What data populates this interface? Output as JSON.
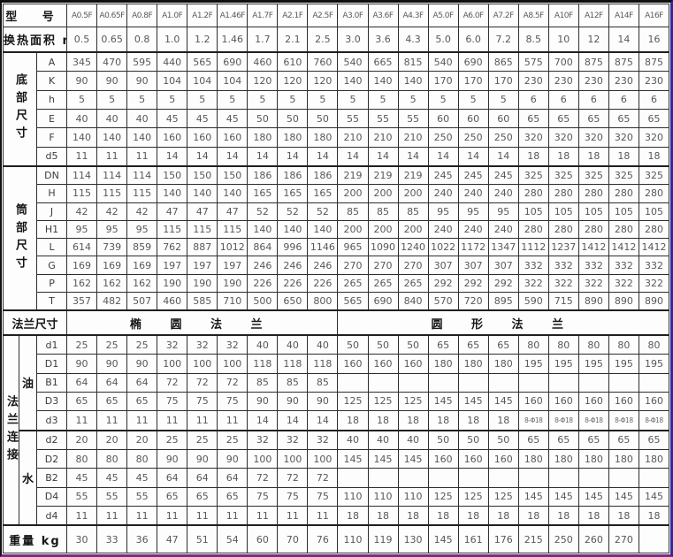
{
  "table": {
    "header": {
      "model_label": "型  号",
      "models": [
        "A0.5F",
        "A0.65F",
        "A0.8F",
        "A1.0F",
        "A1.2F",
        "A1.46F",
        "A1.7F",
        "A2.1F",
        "A2.5F",
        "A3.0F",
        "A3.6F",
        "A4.3F",
        "A5.0F",
        "A6.0F",
        "A7.2F",
        "A8.5F",
        "A10F",
        "A12F",
        "A14F",
        "A16F"
      ]
    },
    "area": {
      "label": "换热面积 m²",
      "values": [
        "0.5",
        "0.65",
        "0.8",
        "1.0",
        "1.2",
        "1.46",
        "1.7",
        "2.1",
        "2.5",
        "3.0",
        "3.6",
        "4.3",
        "5.0",
        "6.0",
        "7.2",
        "8.5",
        "10",
        "12",
        "14",
        "16"
      ]
    },
    "bottom": {
      "label": "底部尺寸",
      "rows": [
        {
          "param": "A",
          "values": [
            "345",
            "470",
            "595",
            "440",
            "565",
            "690",
            "460",
            "610",
            "760",
            "540",
            "665",
            "815",
            "540",
            "690",
            "865",
            "575",
            "700",
            "875",
            "875",
            "875"
          ]
        },
        {
          "param": "K",
          "values": [
            "90",
            "90",
            "90",
            "104",
            "104",
            "104",
            "120",
            "120",
            "120",
            "140",
            "140",
            "140",
            "170",
            "170",
            "170",
            "230",
            "230",
            "230",
            "230",
            "230"
          ]
        },
        {
          "param": "h",
          "values": [
            "5",
            "5",
            "5",
            "5",
            "5",
            "5",
            "5",
            "5",
            "5",
            "5",
            "5",
            "5",
            "5",
            "5",
            "5",
            "6",
            "6",
            "6",
            "6",
            "6"
          ]
        },
        {
          "param": "E",
          "values": [
            "40",
            "40",
            "40",
            "45",
            "45",
            "45",
            "50",
            "50",
            "50",
            "55",
            "55",
            "55",
            "60",
            "60",
            "60",
            "65",
            "65",
            "65",
            "65",
            "65"
          ]
        },
        {
          "param": "F",
          "values": [
            "140",
            "140",
            "140",
            "160",
            "160",
            "160",
            "180",
            "180",
            "180",
            "210",
            "210",
            "210",
            "250",
            "250",
            "250",
            "320",
            "320",
            "320",
            "320",
            "320"
          ]
        },
        {
          "param": "d5",
          "values": [
            "11",
            "11",
            "11",
            "14",
            "14",
            "14",
            "14",
            "14",
            "14",
            "14",
            "14",
            "14",
            "14",
            "14",
            "14",
            "18",
            "18",
            "18",
            "18",
            "18"
          ]
        }
      ]
    },
    "cylinder": {
      "label": "筒部尺寸",
      "rows": [
        {
          "param": "DN",
          "values": [
            "114",
            "114",
            "114",
            "150",
            "150",
            "150",
            "186",
            "186",
            "186",
            "219",
            "219",
            "219",
            "245",
            "245",
            "245",
            "325",
            "325",
            "325",
            "325",
            "325"
          ]
        },
        {
          "param": "H",
          "values": [
            "115",
            "115",
            "115",
            "140",
            "140",
            "140",
            "165",
            "165",
            "165",
            "200",
            "200",
            "200",
            "240",
            "240",
            "240",
            "280",
            "280",
            "280",
            "280",
            "280"
          ]
        },
        {
          "param": "J",
          "values": [
            "42",
            "42",
            "42",
            "47",
            "47",
            "47",
            "52",
            "52",
            "52",
            "85",
            "85",
            "85",
            "95",
            "95",
            "95",
            "105",
            "105",
            "105",
            "105",
            "105"
          ]
        },
        {
          "param": "H1",
          "values": [
            "95",
            "95",
            "95",
            "115",
            "115",
            "115",
            "140",
            "140",
            "140",
            "200",
            "200",
            "200",
            "240",
            "240",
            "240",
            "280",
            "280",
            "280",
            "280",
            "280"
          ]
        },
        {
          "param": "L",
          "values": [
            "614",
            "739",
            "859",
            "762",
            "887",
            "1012",
            "864",
            "996",
            "1146",
            "965",
            "1090",
            "1240",
            "1022",
            "1172",
            "1347",
            "1112",
            "1237",
            "1412",
            "1412",
            "1412"
          ]
        },
        {
          "param": "G",
          "values": [
            "169",
            "169",
            "169",
            "197",
            "197",
            "197",
            "246",
            "246",
            "246",
            "270",
            "270",
            "270",
            "307",
            "307",
            "307",
            "332",
            "332",
            "332",
            "332",
            "332"
          ]
        },
        {
          "param": "P",
          "values": [
            "162",
            "162",
            "162",
            "190",
            "190",
            "190",
            "226",
            "226",
            "226",
            "265",
            "265",
            "265",
            "292",
            "292",
            "292",
            "322",
            "322",
            "322",
            "322",
            "322"
          ]
        },
        {
          "param": "T",
          "values": [
            "357",
            "482",
            "507",
            "460",
            "585",
            "710",
            "500",
            "650",
            "800",
            "565",
            "690",
            "840",
            "570",
            "720",
            "895",
            "590",
            "715",
            "890",
            "890",
            "890"
          ]
        }
      ]
    },
    "flange": {
      "label": "法兰尺寸",
      "oval": "椭 圆 法 兰",
      "round": "圆 形 法 兰"
    },
    "connection": {
      "label": "法兰连接",
      "oil": {
        "label": "油",
        "rows": [
          {
            "param": "d1",
            "values": [
              "25",
              "25",
              "25",
              "32",
              "32",
              "32",
              "40",
              "40",
              "40",
              "50",
              "50",
              "50",
              "65",
              "65",
              "65",
              "80",
              "80",
              "80",
              "80",
              "80"
            ]
          },
          {
            "param": "D1",
            "values": [
              "90",
              "90",
              "90",
              "100",
              "100",
              "100",
              "118",
              "118",
              "118",
              "160",
              "160",
              "160",
              "180",
              "180",
              "180",
              "195",
              "195",
              "195",
              "195",
              "195"
            ]
          },
          {
            "param": "B1",
            "values": [
              "64",
              "64",
              "64",
              "72",
              "72",
              "72",
              "85",
              "85",
              "85",
              "",
              "",
              "",
              "",
              "",
              "",
              "",
              "",
              "",
              "",
              ""
            ]
          },
          {
            "param": "D3",
            "values": [
              "65",
              "65",
              "65",
              "75",
              "75",
              "75",
              "90",
              "90",
              "90",
              "125",
              "125",
              "125",
              "145",
              "145",
              "145",
              "160",
              "160",
              "160",
              "160",
              "160"
            ]
          },
          {
            "param": "d3",
            "values": [
              "11",
              "11",
              "11",
              "11",
              "11",
              "11",
              "14",
              "14",
              "14",
              "18",
              "18",
              "18",
              "18",
              "18",
              "18",
              "8-Φ18",
              "8-Φ18",
              "8-Φ18",
              "8-Φ18",
              "8-Φ18"
            ]
          }
        ]
      },
      "water": {
        "label": "水",
        "rows": [
          {
            "param": "d2",
            "values": [
              "20",
              "20",
              "20",
              "25",
              "25",
              "25",
              "32",
              "32",
              "32",
              "40",
              "40",
              "40",
              "50",
              "50",
              "50",
              "65",
              "65",
              "65",
              "65",
              "65"
            ]
          },
          {
            "param": "D2",
            "values": [
              "80",
              "80",
              "80",
              "90",
              "90",
              "90",
              "100",
              "100",
              "100",
              "145",
              "145",
              "145",
              "160",
              "160",
              "160",
              "180",
              "180",
              "180",
              "180",
              "180"
            ]
          },
          {
            "param": "B2",
            "values": [
              "45",
              "45",
              "45",
              "64",
              "64",
              "64",
              "72",
              "72",
              "72",
              "",
              "",
              "",
              "",
              "",
              "",
              "",
              "",
              "",
              "",
              ""
            ]
          },
          {
            "param": "D4",
            "values": [
              "55",
              "55",
              "55",
              "65",
              "65",
              "65",
              "75",
              "75",
              "75",
              "110",
              "110",
              "110",
              "125",
              "125",
              "125",
              "145",
              "145",
              "145",
              "145",
              "145"
            ]
          },
          {
            "param": "d4",
            "values": [
              "11",
              "11",
              "11",
              "11",
              "11",
              "11",
              "11",
              "11",
              "11",
              "18",
              "18",
              "18",
              "18",
              "18",
              "18",
              "18",
              "18",
              "18",
              "18",
              "18"
            ]
          }
        ]
      }
    },
    "weight": {
      "label": "重量 kg",
      "values": [
        "30",
        "33",
        "36",
        "47",
        "51",
        "54",
        "60",
        "70",
        "76",
        "110",
        "119",
        "130",
        "145",
        "161",
        "176",
        "215",
        "250",
        "260",
        "270",
        ""
      ]
    }
  }
}
